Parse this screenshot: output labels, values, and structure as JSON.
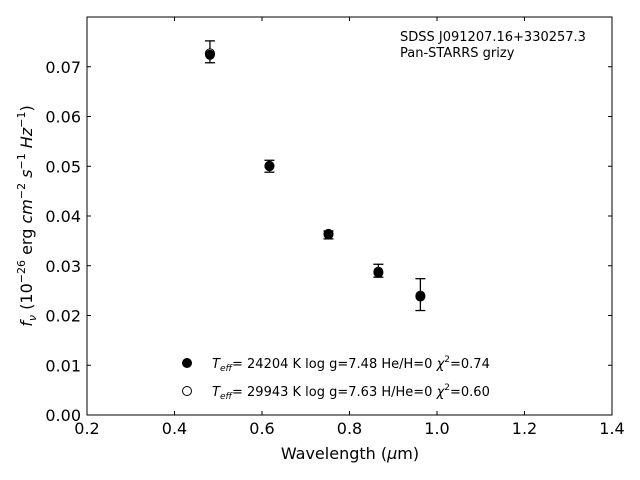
{
  "chart_data": {
    "type": "scatter",
    "xlabel_prefix": "Wavelength (",
    "xlabel_unit_greek": "μ",
    "xlabel_unit_rest": "m)",
    "ylabel_prefix": "f",
    "ylabel_sub": "ν",
    "ylabel_open": " (10",
    "ylabel_exp": "−26",
    "ylabel_mid": " erg ",
    "ylabel_cm": "cm",
    "ylabel_cm_exp": "−2",
    "ylabel_s": " s",
    "ylabel_s_exp": "−1",
    "ylabel_hz": " Hz",
    "ylabel_hz_exp": "−1",
    "ylabel_close": ")",
    "xlim": [
      0.2,
      1.4
    ],
    "ylim": [
      0.0,
      0.08
    ],
    "xticks": [
      0.2,
      0.4,
      0.6,
      0.8,
      1.0,
      1.2,
      1.4
    ],
    "xtick_labels": [
      "0.2",
      "0.4",
      "0.6",
      "0.8",
      "1.0",
      "1.2",
      "1.4"
    ],
    "yticks": [
      0.0,
      0.01,
      0.02,
      0.03,
      0.04,
      0.05,
      0.06,
      0.07
    ],
    "ytick_labels": [
      "0.00",
      "0.01",
      "0.02",
      "0.03",
      "0.04",
      "0.05",
      "0.06",
      "0.07"
    ],
    "annotations": [
      "SDSS J091207.16+330257.3",
      "Pan-STARRS grizy"
    ],
    "observed": {
      "x": [
        0.481,
        0.617,
        0.752,
        0.866,
        0.962
      ],
      "y": [
        0.073,
        0.05,
        0.0362,
        0.029,
        0.0242
      ],
      "yerr": [
        0.0022,
        0.0012,
        0.0008,
        0.0013,
        0.0032
      ]
    },
    "series": [
      {
        "marker": "filled",
        "x": [
          0.481,
          0.617,
          0.752,
          0.866,
          0.962
        ],
        "y": [
          0.0724,
          0.05,
          0.0363,
          0.0286,
          0.0238
        ],
        "label_T": "T",
        "label_eff": "eff",
        "label_rest": "= 24204 K  log g=7.48  He/H=0  ",
        "label_chi": "χ",
        "label_chi_exp": "2",
        "label_chi_val": "=0.74"
      },
      {
        "marker": "open",
        "x": [
          0.481,
          0.617,
          0.752,
          0.866,
          0.962
        ],
        "y": [
          0.0727,
          0.0501,
          0.0364,
          0.0288,
          0.024
        ],
        "label_T": "T",
        "label_eff": "eff",
        "label_rest": "= 29943 K  log g=7.63  H/He=0  ",
        "label_chi": "χ",
        "label_chi_exp": "2",
        "label_chi_val": "=0.60"
      }
    ],
    "grid": false,
    "legend_position": "lower-center"
  }
}
